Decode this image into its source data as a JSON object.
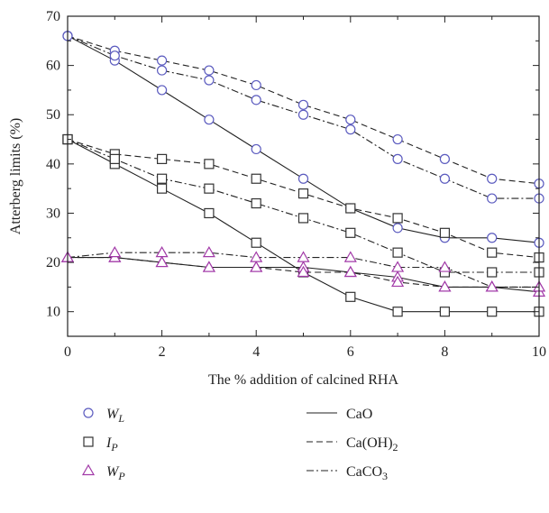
{
  "chart_data": {
    "type": "line",
    "xlabel": "The % addition of calcined RHA",
    "ylabel": "Atterberg limits (%)",
    "xlim": [
      0,
      10
    ],
    "ylim": [
      5,
      70
    ],
    "x_ticks": [
      "0",
      "2",
      "4",
      "6",
      "8",
      "10"
    ],
    "y_ticks": [
      "10",
      "20",
      "30",
      "40",
      "50",
      "60",
      "70"
    ],
    "grid": false,
    "legend_position": "bottom",
    "x": [
      0,
      1,
      2,
      3,
      4,
      5,
      6,
      7,
      8,
      9,
      10
    ],
    "series": [
      {
        "name": "W_L · CaO",
        "property": "W_L",
        "additive": "CaO",
        "marker": "circle",
        "line": "solid",
        "values": [
          66,
          61,
          55,
          49,
          43,
          37,
          31,
          27,
          25,
          25,
          24
        ]
      },
      {
        "name": "W_L · Ca(OH)2",
        "property": "W_L",
        "additive": "Ca(OH)2",
        "marker": "circle",
        "line": "dashed",
        "values": [
          66,
          63,
          61,
          59,
          56,
          52,
          49,
          45,
          41,
          37,
          36
        ]
      },
      {
        "name": "W_L · CaCO3",
        "property": "W_L",
        "additive": "CaCO3",
        "marker": "circle",
        "line": "dashdot",
        "values": [
          66,
          62,
          59,
          57,
          53,
          50,
          47,
          41,
          37,
          33,
          33
        ]
      },
      {
        "name": "I_P · CaO",
        "property": "I_P",
        "additive": "CaO",
        "marker": "square",
        "line": "solid",
        "values": [
          45,
          40,
          35,
          30,
          24,
          18,
          13,
          10,
          10,
          10,
          10
        ]
      },
      {
        "name": "I_P · Ca(OH)2",
        "property": "I_P",
        "additive": "Ca(OH)2",
        "marker": "square",
        "line": "dashed",
        "values": [
          45,
          42,
          41,
          40,
          37,
          34,
          31,
          29,
          26,
          22,
          21
        ]
      },
      {
        "name": "I_P · CaCO3",
        "property": "I_P",
        "additive": "CaCO3",
        "marker": "square",
        "line": "dashdot",
        "values": [
          45,
          41,
          37,
          35,
          32,
          29,
          26,
          22,
          18,
          18,
          18
        ]
      },
      {
        "name": "W_P · CaO",
        "property": "W_P",
        "additive": "CaO",
        "marker": "triangle",
        "line": "solid",
        "values": [
          21,
          21,
          20,
          19,
          19,
          19,
          18,
          17,
          15,
          15,
          14
        ]
      },
      {
        "name": "W_P · Ca(OH)2",
        "property": "W_P",
        "additive": "Ca(OH)2",
        "marker": "triangle",
        "line": "dashed",
        "values": [
          21,
          21,
          20,
          19,
          19,
          18,
          18,
          16,
          15,
          15,
          15
        ]
      },
      {
        "name": "W_P · CaCO3",
        "property": "W_P",
        "additive": "CaCO3",
        "marker": "triangle",
        "line": "dashdot",
        "values": [
          21,
          22,
          22,
          22,
          21,
          21,
          21,
          19,
          19,
          15,
          15
        ]
      }
    ],
    "legend_markers": [
      {
        "key": "W_L",
        "main": "W",
        "sub": "L",
        "marker": "circle"
      },
      {
        "key": "I_P",
        "main": "I",
        "sub": "P",
        "marker": "square"
      },
      {
        "key": "W_P",
        "main": "W",
        "sub": "P",
        "marker": "triangle"
      }
    ],
    "legend_lines": [
      {
        "key": "CaO",
        "main": "CaO",
        "sub": "",
        "line": "solid"
      },
      {
        "key": "Ca(OH)2",
        "main": "Ca(OH)",
        "sub": "2",
        "line": "dashed"
      },
      {
        "key": "CaCO3",
        "main": "CaCO",
        "sub": "3",
        "line": "dashdot"
      }
    ]
  },
  "colors": {
    "W_L": "#5b5bbf",
    "I_P": "#333333",
    "W_P": "#a23aa8",
    "line": "#222222",
    "axis": "#222222"
  }
}
